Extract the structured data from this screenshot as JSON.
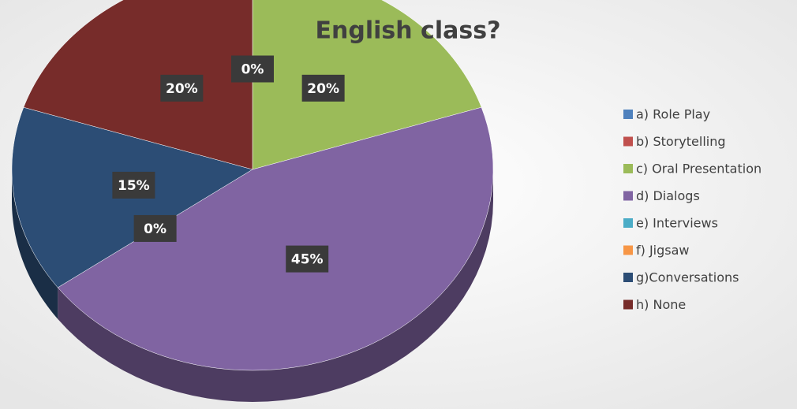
{
  "chart_data": {
    "type": "pie",
    "title": "English class?",
    "categories": [
      "a) Role Play",
      "b) Storytelling",
      "c) Oral Presentation",
      "d) Dialogs",
      "e) Interviews",
      "f) Jigsaw",
      "g)Conversations",
      "h) None"
    ],
    "values": [
      0,
      0,
      20,
      45,
      0,
      0,
      15,
      20
    ],
    "value_labels": [
      "0%",
      null,
      "20%",
      "45%",
      "0%",
      null,
      "15%",
      "20%"
    ],
    "colors": [
      "#4f81bd",
      "#c0504d",
      "#9bbb59",
      "#8064a2",
      "#4bacc6",
      "#f79646",
      "#2c4d75",
      "#772c2a"
    ],
    "legend": "right"
  }
}
